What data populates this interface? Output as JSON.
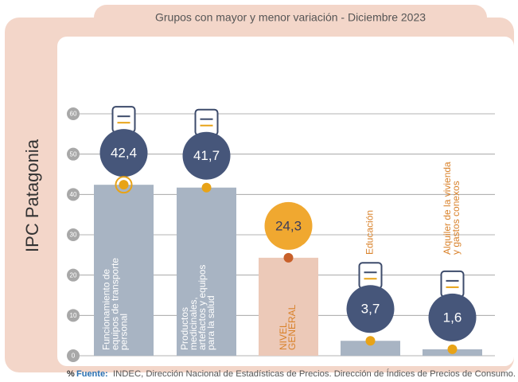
{
  "chart_data": {
    "type": "bar",
    "panel_label": "IPC Patagonia",
    "title": "Grupos con mayor y menor variación - Diciembre 2023",
    "unit": "%",
    "source_label": "Fuente:",
    "source": "INDEC, Dirección Nacional de Estadísticas de Precios. Dirección de Índices de Precios de Consumo.",
    "categories": [
      "Funcionamiento de equipos de transporte personal",
      "Productos medicinales, artefactos y equipos para la salud",
      "NIVEL GENERAL",
      "Educación",
      "Alquiler de la vivienda y gastos conexos"
    ],
    "values": [
      42.4,
      41.7,
      24.3,
      3.7,
      1.6
    ],
    "value_labels": [
      "42,4",
      "41,7",
      "24,3",
      "3,7",
      "1,6"
    ],
    "colors": [
      "#a8b4c3",
      "#a8b4c3",
      "#ecc9b8",
      "#a8b4c3",
      "#a8b4c3"
    ],
    "ylim": [
      0,
      60
    ],
    "yticks": [
      0,
      10,
      20,
      30,
      40,
      50,
      60
    ],
    "grid": true
  }
}
